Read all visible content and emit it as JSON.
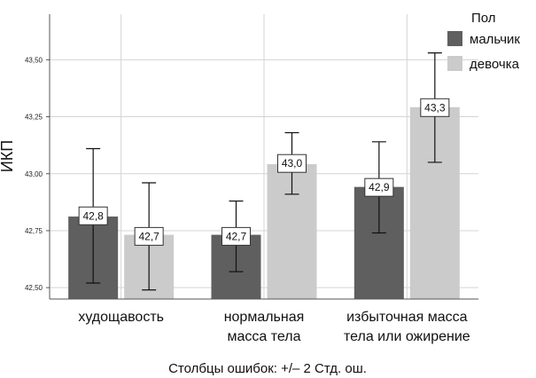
{
  "chart_data": {
    "type": "bar",
    "ylabel": "ИКП",
    "categories": [
      [
        "худощавость"
      ],
      [
        "нормальная",
        "масса тела"
      ],
      [
        "избыточная масса",
        "тела или ожирение"
      ]
    ],
    "yticks": [
      "42,50",
      "42,75",
      "43,00",
      "43,25",
      "43,50"
    ],
    "ylim": [
      42.45,
      43.7
    ],
    "legend_title": "Пол",
    "legend_position": "top-right",
    "grid": true,
    "series": [
      {
        "name": "мальчик",
        "color": "#5f5f5f",
        "values": [
          42.81,
          42.73,
          42.94
        ],
        "err_low": [
          42.52,
          42.57,
          42.74
        ],
        "err_high": [
          43.11,
          42.88,
          43.14
        ],
        "labels": [
          "42,8",
          "42,7",
          "42,9"
        ]
      },
      {
        "name": "девочка",
        "color": "#cbcbcb",
        "values": [
          42.73,
          43.04,
          43.29
        ],
        "err_low": [
          42.49,
          42.91,
          43.05
        ],
        "err_high": [
          42.96,
          43.18,
          43.53
        ],
        "labels": [
          "42,7",
          "43,0",
          "43,3"
        ]
      }
    ],
    "footnote": "Столбцы ошибок: +/– 2 Стд. ош."
  }
}
